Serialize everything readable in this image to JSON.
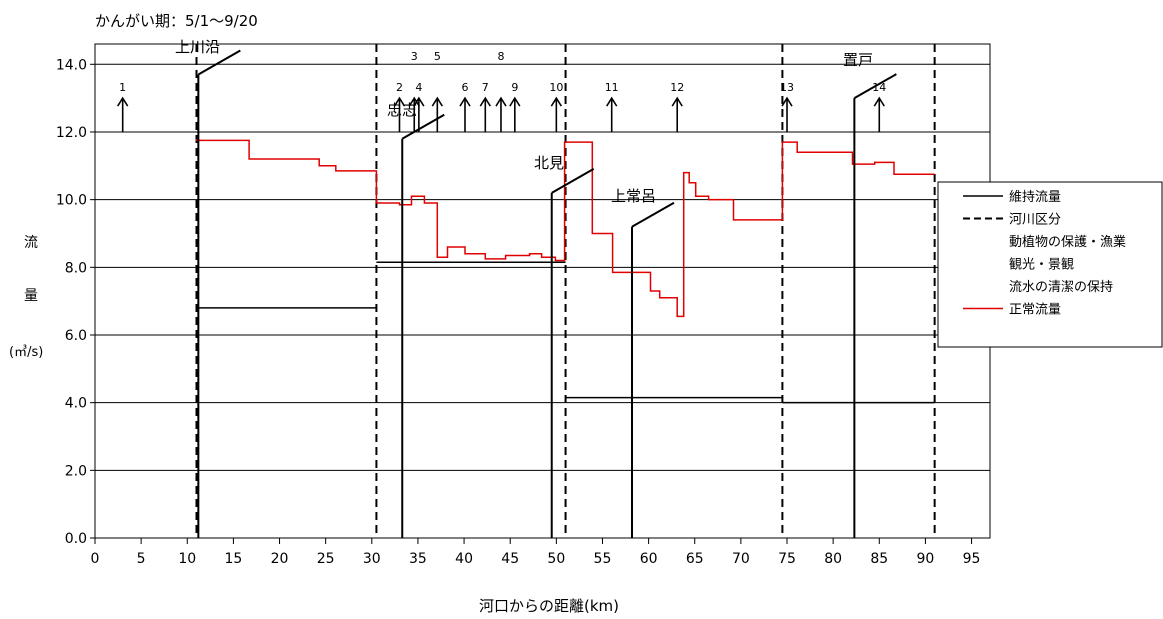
{
  "chart_data": {
    "type": "line",
    "title": "かんがい期：5/1～9/20",
    "xlabel": "河口からの距離(km)",
    "ylabel_chars": [
      "流",
      "量"
    ],
    "ylabel_unit": "(㎥/s)",
    "xlim": [
      0,
      97
    ],
    "ylim": [
      0,
      14.6
    ],
    "x_ticks": [
      0,
      5,
      10,
      15,
      20,
      25,
      30,
      35,
      40,
      45,
      50,
      55,
      60,
      65,
      70,
      75,
      80,
      85,
      90,
      95
    ],
    "y_ticks": [
      "0.0",
      "2.0",
      "4.0",
      "6.0",
      "8.0",
      "10.0",
      "12.0",
      "14.0"
    ],
    "grid": "horizontal",
    "legend_position": "right",
    "legend": [
      {
        "label": "維持流量",
        "style": "solid-black"
      },
      {
        "label": "河川区分",
        "style": "dashed-black"
      },
      {
        "label": "動植物の保護・漁業",
        "style": "none"
      },
      {
        "label": "観光・景観",
        "style": "none"
      },
      {
        "label": "流水の清潔の保持",
        "style": "none"
      },
      {
        "label": "正常流量",
        "style": "solid-red"
      }
    ],
    "section_boundaries_km": [
      11,
      30.5,
      51,
      74.5,
      91
    ],
    "maintenance_flow": [
      {
        "x": [
          11,
          30.5
        ],
        "y": 6.8
      },
      {
        "x": [
          30.5,
          51
        ],
        "y": 8.15
      },
      {
        "x": [
          51,
          74.5
        ],
        "y": 4.15
      },
      {
        "x": [
          74.5,
          91
        ],
        "y": 4.0
      }
    ],
    "normal_flow": {
      "x": [
        11,
        11,
        16.7,
        16.7,
        24.3,
        24.3,
        26.1,
        26.1,
        30.5,
        30.5,
        33.0,
        33.0,
        34.3,
        34.3,
        35.7,
        35.7,
        37.1,
        37.1,
        38.2,
        38.2,
        40.1,
        40.1,
        42.3,
        42.3,
        44.5,
        44.5,
        47.1,
        47.1,
        48.4,
        48.4,
        49.9,
        49.9,
        50.9,
        50.9,
        53.9,
        53.9,
        56.1,
        56.1,
        60.2,
        60.2,
        61.2,
        61.2,
        63.1,
        63.1,
        63.8,
        63.8,
        64.4,
        64.4,
        65.1,
        65.1,
        66.5,
        66.5,
        69.2,
        69.2,
        74.5,
        74.5,
        76.1,
        76.1,
        82.1,
        82.1,
        84.5,
        84.5,
        86.6,
        86.6,
        91
      ],
      "y": [
        11.8,
        11.75,
        11.75,
        11.2,
        11.2,
        11.0,
        11.0,
        10.85,
        10.85,
        9.9,
        9.9,
        9.85,
        9.85,
        10.1,
        10.1,
        9.9,
        9.9,
        8.3,
        8.3,
        8.6,
        8.6,
        8.4,
        8.4,
        8.25,
        8.25,
        8.35,
        8.35,
        8.4,
        8.4,
        8.3,
        8.3,
        8.2,
        8.2,
        11.7,
        11.7,
        9.0,
        9.0,
        7.85,
        7.85,
        7.3,
        7.3,
        7.1,
        7.1,
        6.55,
        6.55,
        10.8,
        10.8,
        10.5,
        10.5,
        10.1,
        10.1,
        10.0,
        10.0,
        9.4,
        9.4,
        11.7,
        11.7,
        11.4,
        11.4,
        11.05,
        11.05,
        11.1,
        11.1,
        10.75,
        10.75
      ]
    },
    "points": [
      {
        "label": "1",
        "x": 3.0
      },
      {
        "label": "2",
        "x": 33.0
      },
      {
        "label": "3",
        "x": 34.6
      },
      {
        "label": "4",
        "x": 35.1
      },
      {
        "label": "5",
        "x": 37.1
      },
      {
        "label": "6",
        "x": 40.1
      },
      {
        "label": "7",
        "x": 42.3
      },
      {
        "label": "8",
        "x": 44.0
      },
      {
        "label": "9",
        "x": 45.5
      },
      {
        "label": "10",
        "x": 50.0
      },
      {
        "label": "11",
        "x": 56.0
      },
      {
        "label": "12",
        "x": 63.1
      },
      {
        "label": "13",
        "x": 75.0
      },
      {
        "label": "14",
        "x": 85.0
      }
    ],
    "point_labels_top": [
      "3",
      "5",
      "8"
    ],
    "stations": [
      {
        "label": "上川沿",
        "x": 11.2
      },
      {
        "label": "忠志",
        "x": 33.3
      },
      {
        "label": "北見",
        "x": 49.5
      },
      {
        "label": "上常呂",
        "x": 58.2
      },
      {
        "label": "置戸",
        "x": 82.3
      }
    ]
  }
}
